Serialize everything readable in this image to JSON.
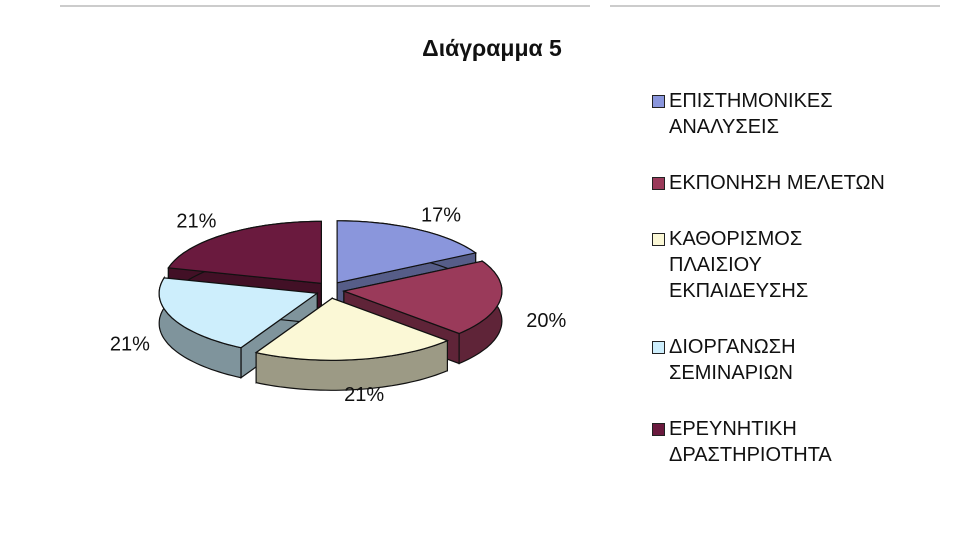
{
  "chart_data": {
    "type": "pie",
    "title": "Διάγραμμα 5",
    "categories": [
      "ΕΠΙΣΤΗΜΟΝΙΚΕΣ\nΑΝΑΛΥΣΕΙΣ",
      "ΕΚΠΟΝΗΣΗ ΜΕΛΕΤΩΝ",
      "ΚΑΘΟΡΙΣΜΟΣ\nΠΛΑΙΣΙΟΥ\nΕΚΠΑΙΔΕΥΣΗΣ",
      "ΔΙΟΡΓΑΝΩΣΗ\nΣΕΜΙΝΑΡΙΩΝ",
      "ΕΡΕΥΝΗΤΙΚΗ\nΔΡΑΣΤΗΡΙΟΤΗΤΑ"
    ],
    "values": [
      17,
      20,
      21,
      21,
      21
    ],
    "value_labels": [
      "17%",
      "20%",
      "21%",
      "21%",
      "21%"
    ],
    "colors": [
      "#8a96dc",
      "#9a3a5a",
      "#fbf8d6",
      "#cdeefc",
      "#6a1a3e"
    ],
    "legend": "right"
  }
}
